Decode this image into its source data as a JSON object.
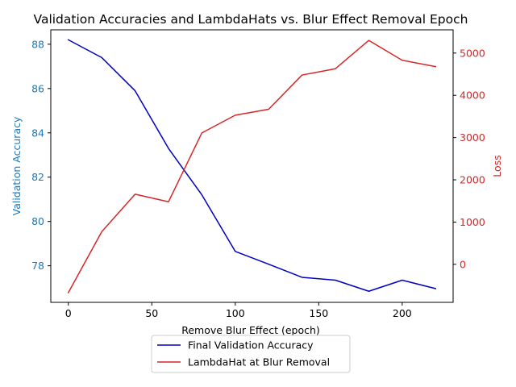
{
  "chart_data": {
    "type": "line",
    "title": "Validation Accuracies and LambdaHats vs. Blur Effect Removal Epoch",
    "xlabel": "Remove Blur Effect (epoch)",
    "ylabel_left": "Validation Accuracy",
    "ylabel_right": "Loss",
    "xlim": [
      -10.5,
      230.5
    ],
    "ylim_left": [
      76.35,
      88.65
    ],
    "ylim_right": [
      -900,
      5550
    ],
    "x_ticks": [
      0,
      50,
      100,
      150,
      200
    ],
    "y_left_ticks": [
      78,
      80,
      82,
      84,
      86,
      88
    ],
    "y_right_ticks": [
      0,
      1000,
      2000,
      3000,
      4000,
      5000
    ],
    "colors": {
      "left_axis": "#1f77b4",
      "right_axis": "#d62728",
      "accuracy_line": "#0000bf",
      "lambda_line": "#d62728"
    },
    "series": [
      {
        "name": "Final Validation Accuracy",
        "axis": "left",
        "color": "#0000bf",
        "x": [
          0,
          20,
          40,
          60,
          80,
          100,
          120,
          140,
          160,
          180,
          200,
          220
        ],
        "values": [
          88.2,
          87.4,
          85.9,
          83.3,
          81.2,
          78.65,
          78.07,
          77.48,
          77.35,
          76.85,
          77.35,
          76.97
        ]
      },
      {
        "name": "LambdaHat at Blur Removal",
        "axis": "right",
        "color": "#d62728",
        "x": [
          0,
          20,
          40,
          60,
          80,
          100,
          120,
          140,
          160,
          180,
          200,
          220
        ],
        "values": [
          -670,
          770,
          1660,
          1480,
          3110,
          3530,
          3670,
          4480,
          4630,
          5300,
          4830,
          4680
        ]
      }
    ],
    "legend": {
      "placement": "bottom-center",
      "entries": [
        "Final Validation Accuracy",
        "LambdaHat at Blur Removal"
      ]
    }
  }
}
